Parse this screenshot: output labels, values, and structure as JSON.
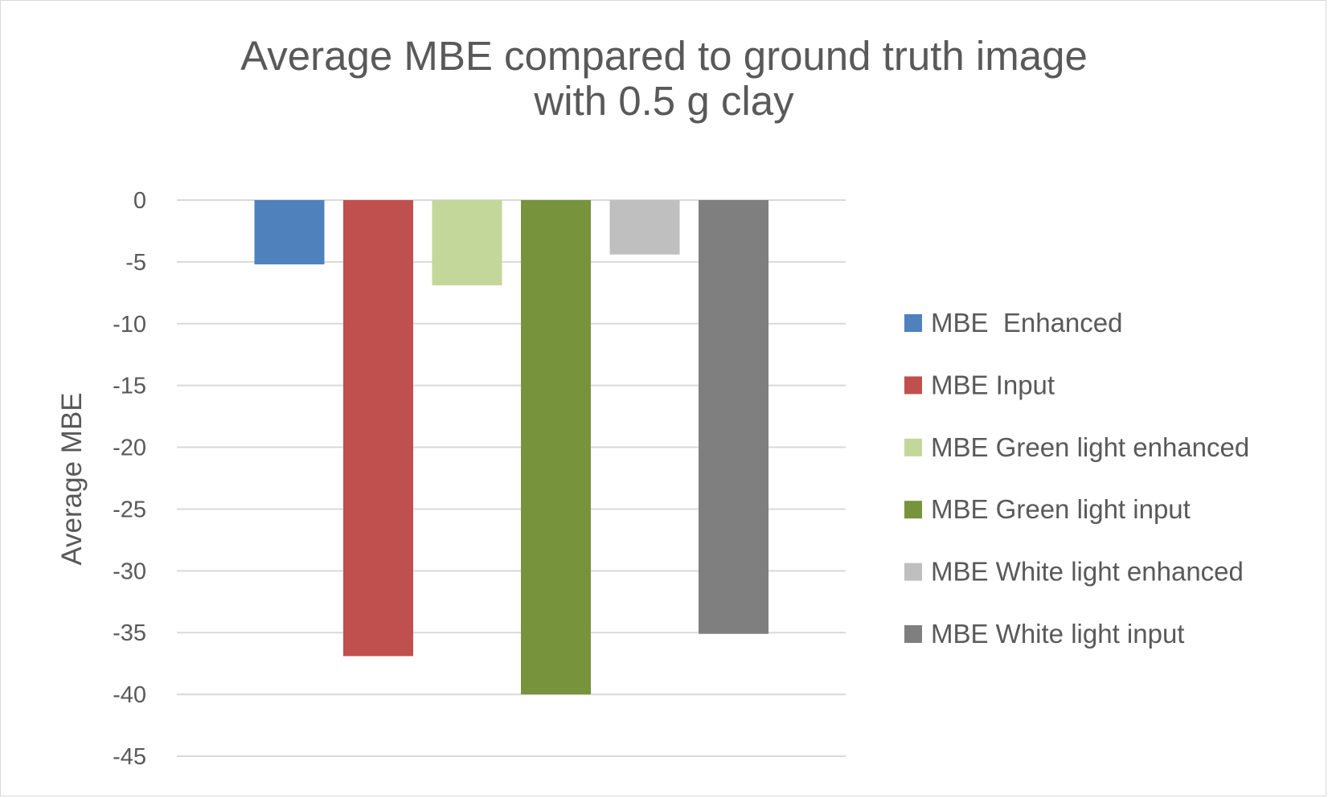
{
  "chart_data": {
    "type": "bar",
    "title_lines": [
      "Average MBE compared to ground truth image",
      "with 0.5 g clay"
    ],
    "xlabel": "",
    "ylabel": "Average MBE",
    "ylim": [
      -45,
      0
    ],
    "yticks": [
      0,
      -5,
      -10,
      -15,
      -20,
      -25,
      -30,
      -35,
      -40,
      -45
    ],
    "grid": true,
    "legend_position": "right",
    "series": [
      {
        "name": "MBE  Enhanced",
        "value": -5.2,
        "color": "#4f81bd"
      },
      {
        "name": "MBE Input",
        "value": -36.9,
        "color": "#c0504d"
      },
      {
        "name": "MBE Green light enhanced",
        "value": -6.9,
        "color": "#c4d79b"
      },
      {
        "name": "MBE Green light input",
        "value": -40.0,
        "color": "#77933c"
      },
      {
        "name": "MBE White light enhanced",
        "value": -4.4,
        "color": "#bfbfbf"
      },
      {
        "name": "MBE White light input",
        "value": -35.1,
        "color": "#7f7f7f"
      }
    ]
  }
}
